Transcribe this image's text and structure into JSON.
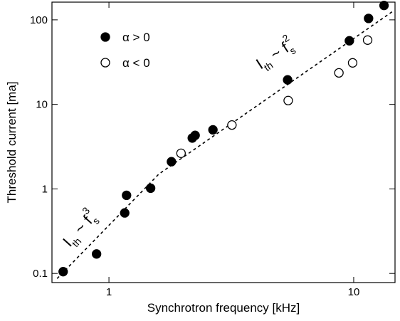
{
  "chart_data": {
    "type": "scatter",
    "xlabel": "Synchrotron frequency [kHz]",
    "ylabel": "Threshold current [ma]",
    "xscale": "log",
    "yscale": "log",
    "xlim": [
      0.585,
      14.75
    ],
    "ylim": [
      0.078,
      162
    ],
    "xticks": [
      1,
      10
    ],
    "yticks": [
      0.1,
      1,
      10,
      100
    ],
    "legend": "upper-left",
    "series": [
      {
        "name": "α > 0",
        "color": "#000000",
        "fill": "filled",
        "x": [
          0.65,
          0.89,
          1.16,
          1.18,
          1.48,
          1.8,
          2.19,
          2.25,
          2.66,
          5.37,
          9.6,
          11.5,
          13.3
        ],
        "values": [
          0.105,
          0.17,
          0.52,
          0.84,
          1.02,
          2.1,
          4.0,
          4.3,
          5.0,
          19.5,
          56.5,
          104,
          148
        ]
      },
      {
        "name": "α < 0",
        "color": "#000000",
        "fill": "open",
        "x": [
          1.97,
          3.18,
          5.4,
          8.7,
          9.9,
          11.4
        ],
        "values": [
          2.64,
          5.7,
          11.1,
          23.6,
          31,
          57.6
        ]
      }
    ],
    "fit": {
      "x": [
        0.614,
        1.6,
        14.55
      ],
      "values": [
        0.087,
        1.5,
        128
      ]
    },
    "annotations": [
      {
        "main": "I",
        "sub": "th",
        "rest": " ~ f",
        "sub2": "s",
        "sup": "3"
      },
      {
        "main": "I",
        "sub": "th",
        "rest": " ~ f",
        "sub2": "s",
        "sup": "2"
      }
    ]
  }
}
